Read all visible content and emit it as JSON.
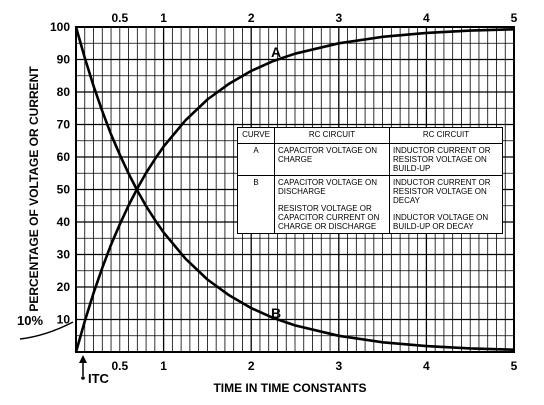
{
  "chart_data": {
    "type": "line",
    "title": "",
    "xlabel": "TIME IN TIME CONSTANTS",
    "ylabel": "PERCENTAGE OF VOLTAGE OR CURRENT",
    "xlim": [
      0,
      5
    ],
    "ylim": [
      0,
      100
    ],
    "grid": true,
    "x_ticks": [
      "0.5",
      "1",
      "2",
      "3",
      "4",
      "5"
    ],
    "x_tick_values": [
      0.5,
      1,
      2,
      3,
      4,
      5
    ],
    "y_ticks": [
      "10",
      "20",
      "30",
      "40",
      "50",
      "60",
      "70",
      "80",
      "90",
      "100"
    ],
    "y_tick_values": [
      10,
      20,
      30,
      40,
      50,
      60,
      70,
      80,
      90,
      100
    ],
    "series": [
      {
        "name": "A",
        "x": [
          0,
          0.1,
          0.2,
          0.3,
          0.4,
          0.5,
          0.6,
          0.7,
          0.8,
          0.9,
          1,
          1.25,
          1.5,
          1.75,
          2,
          2.25,
          2.5,
          3,
          3.5,
          4,
          4.5,
          5
        ],
        "values": [
          0,
          9.5,
          18.1,
          25.9,
          33,
          39.3,
          45.1,
          50.3,
          55.1,
          59.3,
          63.2,
          71.3,
          77.7,
          82.6,
          86.5,
          89.5,
          91.8,
          95,
          97,
          98.2,
          98.9,
          99.3
        ]
      },
      {
        "name": "B",
        "x": [
          0,
          0.1,
          0.2,
          0.3,
          0.4,
          0.5,
          0.6,
          0.7,
          0.8,
          0.9,
          1,
          1.25,
          1.5,
          1.75,
          2,
          2.25,
          2.5,
          3,
          3.5,
          4,
          4.5,
          5
        ],
        "values": [
          100,
          90.5,
          81.9,
          74.1,
          67,
          60.7,
          54.9,
          49.7,
          44.9,
          40.7,
          36.8,
          28.7,
          22.3,
          17.4,
          13.5,
          10.5,
          8.2,
          5,
          3,
          1.8,
          1.1,
          0.7
        ]
      }
    ],
    "annotations": {
      "ten_percent": "10%",
      "itc": "ITC"
    },
    "legend_table": {
      "headers": [
        "CURVE",
        "RC CIRCUIT",
        "RC CIRCUIT"
      ],
      "rows": [
        {
          "curve": "A",
          "col1": [
            "CAPACITOR VOLTAGE ON CHARGE"
          ],
          "col2": [
            "INDUCTOR CURRENT OR RESISTOR VOLTAGE ON BUILD-UP"
          ]
        },
        {
          "curve": "B",
          "col1": [
            "CAPACITOR VOLTAGE ON DISCHARGE",
            "RESISTOR VOLTAGE OR CAPACITOR CURRENT ON CHARGE OR DISCHARGE"
          ],
          "col2": [
            "INDUCTOR CURRENT OR RESISTOR VOLTAGE ON DECAY",
            "INDUCTOR VOLTAGE ON BUILD-UP OR DECAY"
          ]
        }
      ]
    }
  }
}
